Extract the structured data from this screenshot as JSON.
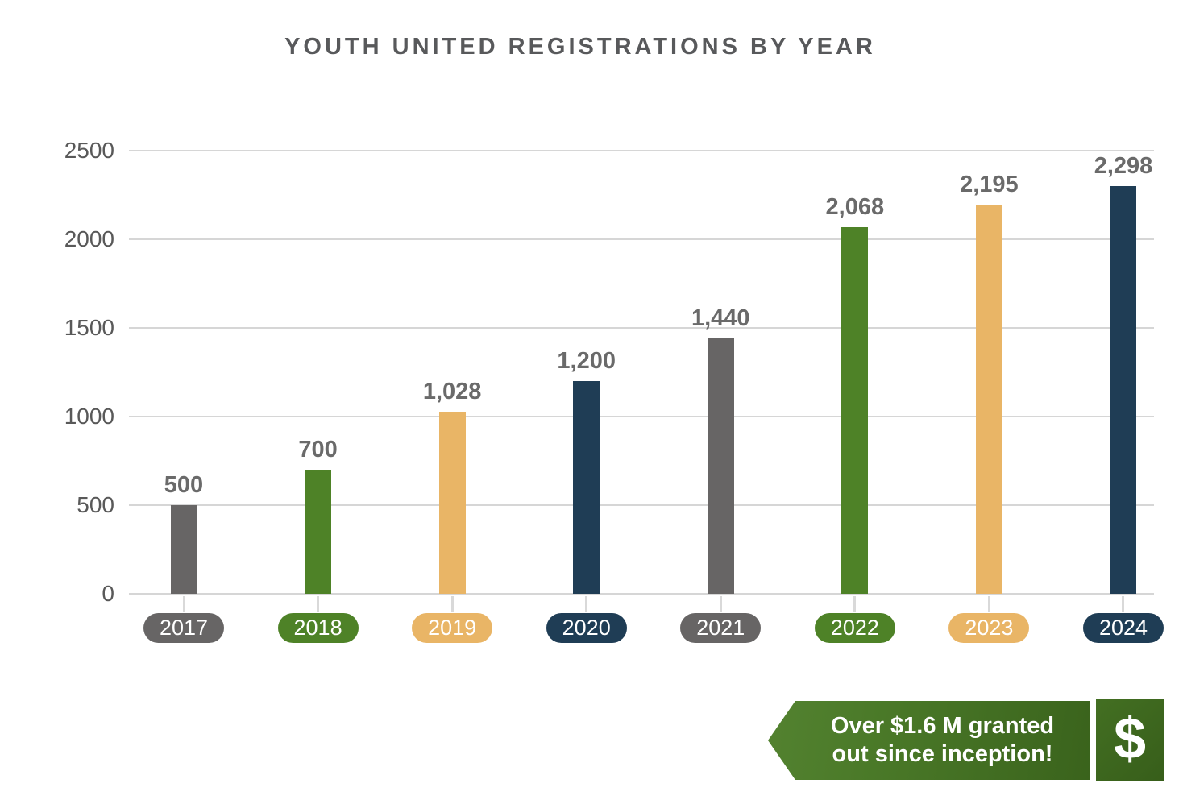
{
  "title": "YOUTH UNITED REGISTRATIONS BY YEAR",
  "chart_data": {
    "type": "bar",
    "title": "YOUTH UNITED REGISTRATIONS BY YEAR",
    "categories": [
      "2017",
      "2018",
      "2019",
      "2020",
      "2021",
      "2022",
      "2023",
      "2024"
    ],
    "values": [
      500,
      700,
      1028,
      1200,
      1440,
      2068,
      2195,
      2298
    ],
    "value_labels": [
      "500",
      "700",
      "1,028",
      "1,200",
      "1,440",
      "2,068",
      "2,195",
      "2,298"
    ],
    "bar_colors": [
      "#676565",
      "#4e8227",
      "#e9b566",
      "#1f3d55",
      "#676565",
      "#4e8227",
      "#e9b566",
      "#1f3d55"
    ],
    "xlabel": "",
    "ylabel": "",
    "ylim": [
      0,
      2500
    ],
    "yticks": [
      0,
      500,
      1000,
      1500,
      2000,
      2500
    ],
    "ytick_labels": [
      "0",
      "500",
      "1000",
      "1500",
      "2000",
      "2500"
    ],
    "grid": true,
    "legend": false
  },
  "banner": {
    "text_line1": "Over $1.6 M granted",
    "text_line2": "out since inception!",
    "dollar_glyph": "$",
    "icon": "dollar-sign-icon"
  },
  "colors": {
    "gray": "#676565",
    "green": "#4e8227",
    "gold": "#e9b566",
    "navy": "#1f3d55",
    "banner_green_light": "#538230",
    "banner_green_dark": "#3a631c",
    "grid": "#d6d6d6",
    "axis_text": "#595959",
    "value_text": "#6a6a6a",
    "title_text": "#58595b"
  }
}
